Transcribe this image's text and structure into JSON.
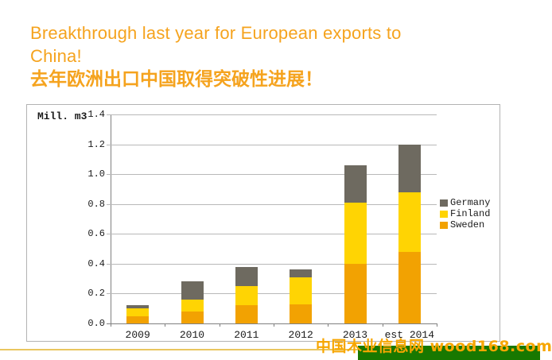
{
  "slide": {
    "title_line1": "Breakthrough last year for European exports to",
    "title_line2": "China!",
    "subtitle_cn": "去年欧洲出口中国取得突破性进展！",
    "title_color": "#F5A31E"
  },
  "watermark": {
    "text": "中国木业信息网 wood168.com",
    "text_color": "#F7A600",
    "box_color": "#187800",
    "line_color": "#EAC65F"
  },
  "chart_data": {
    "type": "bar",
    "stacked": true,
    "title": "",
    "xlabel": "",
    "ylabel": "Mill. m3",
    "categories": [
      "2009",
      "2010",
      "2011",
      "2012",
      "2013",
      "est 2014"
    ],
    "series": [
      {
        "name": "Sweden",
        "color": "#F2A202",
        "values": [
          0.05,
          0.08,
          0.12,
          0.13,
          0.4,
          0.48
        ]
      },
      {
        "name": "Finland",
        "color": "#FFD403",
        "values": [
          0.05,
          0.08,
          0.13,
          0.18,
          0.41,
          0.4
        ]
      },
      {
        "name": "Germany",
        "color": "#6E6A60",
        "values": [
          0.02,
          0.12,
          0.13,
          0.05,
          0.25,
          0.32
        ]
      }
    ],
    "totals": [
      0.12,
      0.28,
      0.38,
      0.36,
      1.06,
      1.2
    ],
    "ylim": [
      0,
      1.4
    ],
    "ytick_step": 0.2,
    "grid": true,
    "legend_position": "right",
    "legend_order": [
      "Germany",
      "Finland",
      "Sweden"
    ]
  }
}
